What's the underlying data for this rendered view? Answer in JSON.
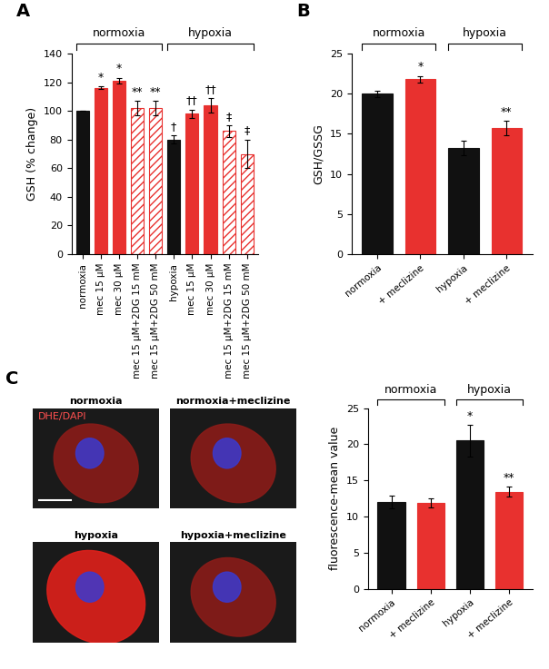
{
  "chart_data": [
    {
      "type": "bar",
      "panel": "A",
      "categories": [
        "normoxia",
        "mec 15 µM",
        "mec 30 µM",
        "mec 15 µM+2DG 15 mM",
        "mec 15 µM+2DG 50 mM",
        "hypoxia",
        "mec 15 µM",
        "mec 30 µM",
        "mec 15 µM+2DG 15 mM",
        "mec 15 µM+2DG 50 mM"
      ],
      "values": [
        100,
        116,
        121,
        102,
        102,
        80,
        98,
        104,
        86,
        70
      ],
      "errors": [
        0,
        1,
        2,
        5,
        5,
        3,
        3,
        5,
        4,
        10
      ],
      "color": "#e8312f",
      "colors": [
        "#111111",
        "#e8312f",
        "#e8312f",
        "#ffffff",
        "#ffffff",
        "#111111",
        "#e8312f",
        "#e8312f",
        "#ffffff",
        "#ffffff"
      ],
      "annotations": [
        null,
        "*",
        "*",
        "**",
        "**",
        "†",
        "††",
        "††",
        "‡",
        "‡"
      ],
      "groups": [
        {
          "label": "normoxia",
          "start": 0,
          "end": 4
        },
        {
          "label": "hypoxia",
          "start": 5,
          "end": 9
        }
      ],
      "y_label": "GSH (% change)",
      "ylim": [
        0,
        140
      ],
      "yticks": [
        0,
        20,
        40,
        60,
        80,
        100,
        120,
        140
      ]
    },
    {
      "type": "bar",
      "panel": "B",
      "categories": [
        "normoxia",
        "+ meclizine",
        "hypoxia",
        "+ meclizine"
      ],
      "values": [
        20.0,
        21.8,
        13.2,
        15.7
      ],
      "errors": [
        0.4,
        0.4,
        0.9,
        0.9
      ],
      "color": "#e8312f",
      "colors": [
        "#111111",
        "#e8312f",
        "#111111",
        "#e8312f"
      ],
      "annotations": [
        null,
        "*",
        null,
        "**"
      ],
      "groups": [
        {
          "label": "normoxia",
          "start": 0,
          "end": 1
        },
        {
          "label": "hypoxia",
          "start": 2,
          "end": 3
        }
      ],
      "y_label": "GSH/GSSG",
      "ylim": [
        0,
        25
      ],
      "yticks": [
        0,
        5,
        10,
        15,
        20,
        25
      ]
    },
    {
      "type": "image_grid",
      "panel": "C",
      "panels": [
        "normoxia",
        "normoxia+meclizine",
        "hypoxia",
        "hypoxia+meclizine"
      ],
      "stain_label": "DHE/DAPI"
    },
    {
      "type": "bar",
      "categories": [
        "normoxia",
        "+ meclizine",
        "hypoxia",
        "+ meclizine"
      ],
      "values": [
        12.0,
        11.9,
        20.5,
        13.4
      ],
      "errors": [
        0.9,
        0.6,
        2.2,
        0.7
      ],
      "color": "#e8312f",
      "colors": [
        "#111111",
        "#e8312f",
        "#111111",
        "#e8312f"
      ],
      "annotations": [
        null,
        null,
        "*",
        "**"
      ],
      "groups": [
        {
          "label": "normoxia",
          "start": 0,
          "end": 1
        },
        {
          "label": "hypoxia",
          "start": 2,
          "end": 3
        }
      ],
      "y_label": "fluorescence-mean value",
      "ylim": [
        0,
        25
      ],
      "yticks": [
        0,
        5,
        10,
        15,
        20,
        25
      ]
    }
  ]
}
